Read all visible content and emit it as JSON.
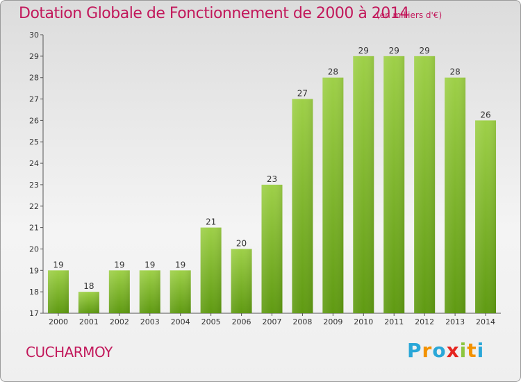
{
  "chart_data": {
    "type": "bar",
    "title": "Dotation Globale de Fonctionnement de 2000 à 2014",
    "subtitle": "(en milliers d'€)",
    "categories": [
      "2000",
      "2001",
      "2002",
      "2003",
      "2004",
      "2005",
      "2006",
      "2007",
      "2008",
      "2009",
      "2010",
      "2011",
      "2012",
      "2013",
      "2014"
    ],
    "values": [
      19,
      18,
      19,
      19,
      19,
      21,
      20,
      23,
      27,
      28,
      29,
      29,
      29,
      28,
      26
    ],
    "ylim": [
      17,
      30
    ],
    "yticks": [
      17,
      18,
      19,
      20,
      21,
      22,
      23,
      24,
      25,
      26,
      27,
      28,
      29,
      30
    ],
    "grid": false,
    "bar_color_top": "#9ed048",
    "bar_color_bottom": "#5f9a12"
  },
  "commune": "CUCHARMOY",
  "logo": {
    "letters": [
      "P",
      "r",
      "o",
      "x",
      "i",
      "t",
      "i"
    ],
    "colors": [
      "#2aa7d8",
      "#f39200",
      "#2aa7d8",
      "#e52520",
      "#8dc63f",
      "#f39200",
      "#2aa7d8"
    ]
  },
  "colors": {
    "title": "#c2185b"
  }
}
